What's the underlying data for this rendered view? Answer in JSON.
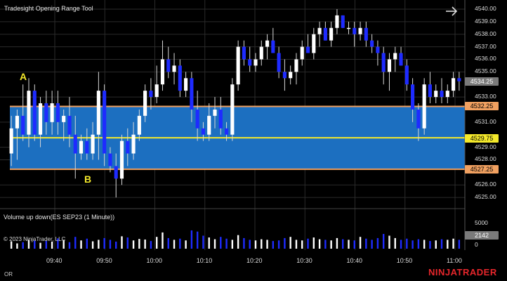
{
  "window": {
    "title": "Tradesight Opening Range Tool",
    "status_left": "OR",
    "brand": "NINJATRADER",
    "nav_icon": "arrow-right-icon"
  },
  "annotations": {
    "a_label": "A",
    "b_label": "B"
  },
  "price_axis": {
    "ticks": [
      "4540.00",
      "4539.00",
      "4538.00",
      "4537.00",
      "4536.00",
      "4535.00",
      "4533.00",
      "4531.00",
      "4529.00",
      "4528.00",
      "4526.00",
      "4525.00"
    ],
    "tick_values": [
      4540,
      4539,
      4538,
      4537,
      4536,
      4535,
      4533,
      4531,
      4529,
      4528,
      4526,
      4525
    ],
    "markers": {
      "last_price": "4534.25",
      "range_high": "4532.25",
      "range_mid": "4529.75",
      "range_low": "4527.25"
    }
  },
  "opening_range": {
    "high": 4532.25,
    "mid": 4529.75,
    "low": 4527.25,
    "fill_color": "#1c6fc0",
    "boundary_color": "#f0a060",
    "mid_color": "#f4e92b"
  },
  "time_axis": {
    "labels": [
      "09:40",
      "09:50",
      "10:00",
      "10:10",
      "10:20",
      "10:30",
      "10:40",
      "10:50",
      "11:00"
    ]
  },
  "volume_panel": {
    "title": "Volume up down(ES SEP23 (1 Minute))",
    "copyright": "© 2023 NinjaTrader, LLC",
    "ticks": [
      "5000",
      "0"
    ],
    "current": "2142",
    "up_color": "#ffffff",
    "down_color": "#1e2bff"
  },
  "chart_data": {
    "type": "candlestick",
    "instrument": "ES SEP23",
    "interval": "1 Minute",
    "up_color": "#ffffff",
    "down_color": "#1e2bff",
    "ylim": [
      4524.5,
      4540.5
    ],
    "candles": [
      {
        "o": 4528.5,
        "h": 4531.5,
        "l": 4527.5,
        "c": 4530.5
      },
      {
        "o": 4530.5,
        "h": 4532.0,
        "l": 4528.0,
        "c": 4531.5
      },
      {
        "o": 4531.5,
        "h": 4534.0,
        "l": 4529.5,
        "c": 4530.0
      },
      {
        "o": 4530.0,
        "h": 4534.5,
        "l": 4529.0,
        "c": 4533.5
      },
      {
        "o": 4533.5,
        "h": 4534.0,
        "l": 4529.5,
        "c": 4530.0
      },
      {
        "o": 4530.0,
        "h": 4533.0,
        "l": 4529.0,
        "c": 4532.5
      },
      {
        "o": 4532.5,
        "h": 4533.5,
        "l": 4530.0,
        "c": 4531.0
      },
      {
        "o": 4531.0,
        "h": 4533.5,
        "l": 4530.0,
        "c": 4532.5
      },
      {
        "o": 4532.5,
        "h": 4533.5,
        "l": 4530.0,
        "c": 4531.0
      },
      {
        "o": 4531.0,
        "h": 4532.0,
        "l": 4529.5,
        "c": 4531.5
      },
      {
        "o": 4531.5,
        "h": 4533.0,
        "l": 4529.0,
        "c": 4530.0
      },
      {
        "o": 4530.0,
        "h": 4531.5,
        "l": 4526.5,
        "c": 4528.5
      },
      {
        "o": 4528.5,
        "h": 4530.0,
        "l": 4528.0,
        "c": 4529.5
      },
      {
        "o": 4529.5,
        "h": 4530.5,
        "l": 4528.0,
        "c": 4528.5
      },
      {
        "o": 4528.5,
        "h": 4531.0,
        "l": 4528.0,
        "c": 4530.0
      },
      {
        "o": 4530.0,
        "h": 4535.0,
        "l": 4528.0,
        "c": 4533.5
      },
      {
        "o": 4533.5,
        "h": 4534.0,
        "l": 4527.5,
        "c": 4528.5
      },
      {
        "o": 4528.5,
        "h": 4529.0,
        "l": 4527.0,
        "c": 4527.5
      },
      {
        "o": 4527.5,
        "h": 4528.5,
        "l": 4525.0,
        "c": 4526.5
      },
      {
        "o": 4526.5,
        "h": 4530.0,
        "l": 4526.0,
        "c": 4529.5
      },
      {
        "o": 4529.5,
        "h": 4530.5,
        "l": 4527.5,
        "c": 4528.5
      },
      {
        "o": 4528.5,
        "h": 4531.0,
        "l": 4528.0,
        "c": 4530.0
      },
      {
        "o": 4530.0,
        "h": 4532.0,
        "l": 4529.5,
        "c": 4531.5
      },
      {
        "o": 4531.5,
        "h": 4534.0,
        "l": 4531.0,
        "c": 4533.5
      },
      {
        "o": 4533.5,
        "h": 4534.5,
        "l": 4532.0,
        "c": 4533.0
      },
      {
        "o": 4533.0,
        "h": 4535.5,
        "l": 4532.5,
        "c": 4534.0
      },
      {
        "o": 4534.0,
        "h": 4537.5,
        "l": 4533.5,
        "c": 4536.0
      },
      {
        "o": 4536.0,
        "h": 4537.0,
        "l": 4534.5,
        "c": 4535.0
      },
      {
        "o": 4535.0,
        "h": 4536.5,
        "l": 4534.0,
        "c": 4535.5
      },
      {
        "o": 4535.5,
        "h": 4536.0,
        "l": 4533.0,
        "c": 4533.5
      },
      {
        "o": 4533.5,
        "h": 4535.0,
        "l": 4533.0,
        "c": 4534.5
      },
      {
        "o": 4534.5,
        "h": 4535.0,
        "l": 4531.0,
        "c": 4532.0
      },
      {
        "o": 4532.0,
        "h": 4533.5,
        "l": 4529.5,
        "c": 4530.5
      },
      {
        "o": 4530.5,
        "h": 4531.0,
        "l": 4529.5,
        "c": 4530.0
      },
      {
        "o": 4530.0,
        "h": 4532.5,
        "l": 4529.5,
        "c": 4531.5
      },
      {
        "o": 4531.5,
        "h": 4533.0,
        "l": 4530.5,
        "c": 4532.0
      },
      {
        "o": 4532.0,
        "h": 4533.0,
        "l": 4530.0,
        "c": 4530.5
      },
      {
        "o": 4530.5,
        "h": 4531.0,
        "l": 4529.5,
        "c": 4530.0
      },
      {
        "o": 4530.0,
        "h": 4534.5,
        "l": 4529.5,
        "c": 4534.0
      },
      {
        "o": 4534.0,
        "h": 4537.5,
        "l": 4533.5,
        "c": 4537.0
      },
      {
        "o": 4537.0,
        "h": 4537.5,
        "l": 4535.5,
        "c": 4536.0
      },
      {
        "o": 4536.0,
        "h": 4537.0,
        "l": 4535.0,
        "c": 4535.5
      },
      {
        "o": 4535.5,
        "h": 4536.5,
        "l": 4535.0,
        "c": 4536.0
      },
      {
        "o": 4536.0,
        "h": 4537.5,
        "l": 4535.5,
        "c": 4537.0
      },
      {
        "o": 4537.0,
        "h": 4538.0,
        "l": 4536.0,
        "c": 4537.5
      },
      {
        "o": 4537.5,
        "h": 4538.5,
        "l": 4536.5,
        "c": 4536.5
      },
      {
        "o": 4536.5,
        "h": 4537.0,
        "l": 4534.5,
        "c": 4535.0
      },
      {
        "o": 4535.0,
        "h": 4536.0,
        "l": 4533.5,
        "c": 4534.5
      },
      {
        "o": 4534.5,
        "h": 4535.5,
        "l": 4534.0,
        "c": 4535.0
      },
      {
        "o": 4535.0,
        "h": 4536.5,
        "l": 4534.0,
        "c": 4536.0
      },
      {
        "o": 4536.0,
        "h": 4537.5,
        "l": 4535.5,
        "c": 4537.0
      },
      {
        "o": 4537.0,
        "h": 4538.0,
        "l": 4536.5,
        "c": 4536.5
      },
      {
        "o": 4536.5,
        "h": 4538.5,
        "l": 4536.0,
        "c": 4538.0
      },
      {
        "o": 4538.0,
        "h": 4539.0,
        "l": 4537.0,
        "c": 4538.5
      },
      {
        "o": 4538.5,
        "h": 4539.0,
        "l": 4537.5,
        "c": 4537.5
      },
      {
        "o": 4537.5,
        "h": 4539.0,
        "l": 4537.0,
        "c": 4538.5
      },
      {
        "o": 4538.5,
        "h": 4540.0,
        "l": 4538.0,
        "c": 4539.5
      },
      {
        "o": 4539.5,
        "h": 4539.5,
        "l": 4538.5,
        "c": 4538.5
      },
      {
        "o": 4538.5,
        "h": 4539.0,
        "l": 4538.0,
        "c": 4538.5
      },
      {
        "o": 4538.5,
        "h": 4539.0,
        "l": 4537.0,
        "c": 4538.0
      },
      {
        "o": 4538.0,
        "h": 4539.0,
        "l": 4537.5,
        "c": 4538.5
      },
      {
        "o": 4538.5,
        "h": 4539.0,
        "l": 4537.0,
        "c": 4537.5
      },
      {
        "o": 4537.5,
        "h": 4538.0,
        "l": 4536.5,
        "c": 4537.0
      },
      {
        "o": 4537.0,
        "h": 4537.5,
        "l": 4535.5,
        "c": 4536.5
      },
      {
        "o": 4536.5,
        "h": 4537.0,
        "l": 4534.0,
        "c": 4535.0
      },
      {
        "o": 4535.0,
        "h": 4536.5,
        "l": 4533.5,
        "c": 4536.0
      },
      {
        "o": 4536.0,
        "h": 4537.0,
        "l": 4535.0,
        "c": 4536.5
      },
      {
        "o": 4536.5,
        "h": 4537.0,
        "l": 4535.5,
        "c": 4535.5
      },
      {
        "o": 4535.5,
        "h": 4536.0,
        "l": 4533.5,
        "c": 4534.0
      },
      {
        "o": 4534.0,
        "h": 4534.5,
        "l": 4531.0,
        "c": 4532.0
      },
      {
        "o": 4532.0,
        "h": 4532.5,
        "l": 4529.5,
        "c": 4530.5
      },
      {
        "o": 4530.5,
        "h": 4534.5,
        "l": 4530.0,
        "c": 4534.0
      },
      {
        "o": 4534.0,
        "h": 4535.0,
        "l": 4532.5,
        "c": 4533.0
      },
      {
        "o": 4533.0,
        "h": 4534.0,
        "l": 4532.5,
        "c": 4533.5
      },
      {
        "o": 4533.5,
        "h": 4534.5,
        "l": 4532.5,
        "c": 4533.0
      },
      {
        "o": 4533.0,
        "h": 4534.0,
        "l": 4532.5,
        "c": 4533.5
      },
      {
        "o": 4533.5,
        "h": 4535.0,
        "l": 4533.0,
        "c": 4534.5
      },
      {
        "o": 4534.5,
        "h": 4535.0,
        "l": 4533.5,
        "c": 4534.25
      }
    ],
    "volume": [
      0.25,
      0.18,
      0.22,
      0.3,
      0.28,
      0.2,
      0.26,
      0.24,
      0.35,
      0.3,
      0.22,
      0.4,
      0.28,
      0.34,
      0.25,
      0.3,
      0.36,
      0.3,
      0.24,
      0.42,
      0.38,
      0.28,
      0.33,
      0.31,
      0.26,
      0.4,
      0.55,
      0.36,
      0.3,
      0.34,
      0.28,
      0.62,
      0.58,
      0.44,
      0.38,
      0.32,
      0.4,
      0.34,
      0.3,
      0.46,
      0.36,
      0.3,
      0.28,
      0.32,
      0.3,
      0.26,
      0.28,
      0.36,
      0.4,
      0.3,
      0.28,
      0.34,
      0.38,
      0.32,
      0.3,
      0.28,
      0.36,
      0.32,
      0.3,
      0.28,
      0.4,
      0.34,
      0.3,
      0.36,
      0.5,
      0.44,
      0.36,
      0.3,
      0.34,
      0.28,
      0.32,
      0.3,
      0.26,
      0.28,
      0.32,
      0.3,
      0.34,
      0.3
    ]
  }
}
